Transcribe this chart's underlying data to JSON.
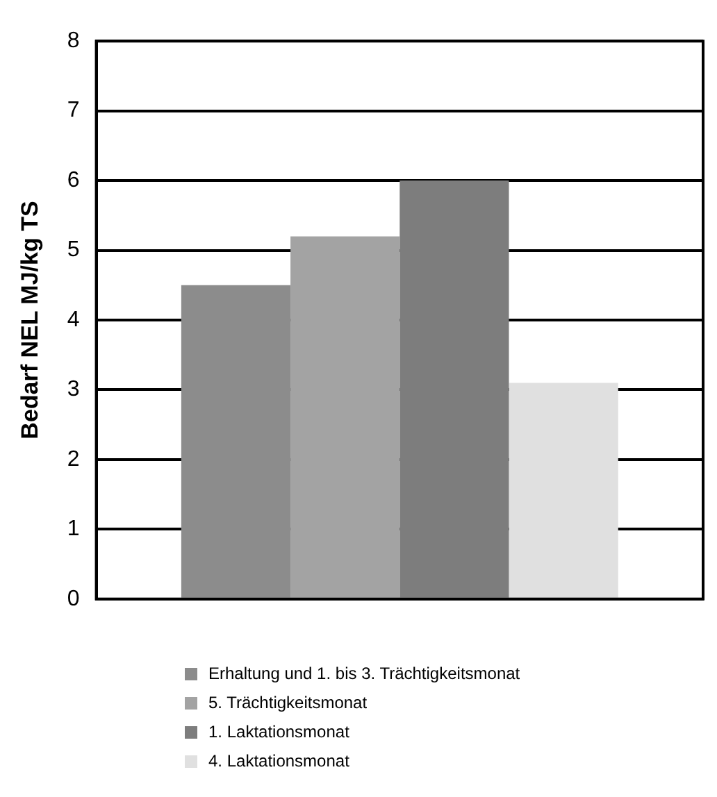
{
  "chart_data": {
    "type": "bar",
    "ylabel": "Bedarf NEL MJ/kg TS",
    "categories": [
      null
    ],
    "series": [
      {
        "name": "Erhaltung und 1. bis 3. Trächtigkeitsmonat",
        "color": "#8c8c8c",
        "values": [
          4.5
        ]
      },
      {
        "name": "5. Trächtigkeitsmonat",
        "color": "#a3a3a3",
        "values": [
          5.2
        ]
      },
      {
        "name": "1. Laktationsmonat",
        "color": "#7d7d7d",
        "values": [
          6.0
        ]
      },
      {
        "name": "4. Laktationsmonat",
        "color": "#e0e0e0",
        "values": [
          3.1
        ]
      }
    ],
    "ylim": [
      0,
      8
    ],
    "yticks": [
      0,
      1,
      2,
      3,
      4,
      5,
      6,
      7,
      8
    ],
    "grid": "y",
    "legend": "bottom"
  }
}
